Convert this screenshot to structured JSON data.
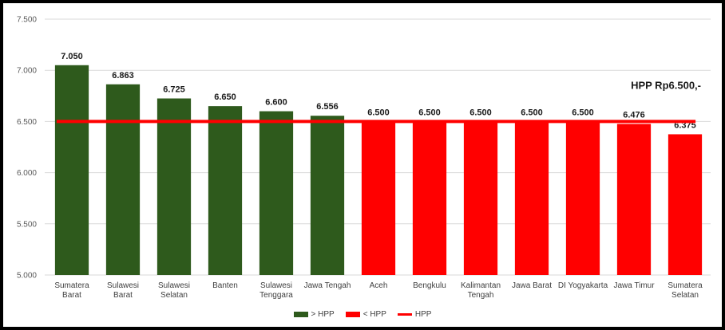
{
  "chart_data": {
    "type": "bar",
    "categories": [
      [
        "Sumatera",
        "Barat"
      ],
      [
        "Sulawesi",
        "Barat"
      ],
      [
        "Sulawesi",
        "Selatan"
      ],
      [
        "Banten"
      ],
      [
        "Sulawesi",
        "Tenggara"
      ],
      [
        "Jawa Tengah"
      ],
      [
        "Aceh"
      ],
      [
        "Bengkulu"
      ],
      [
        "Kalimantan",
        "Tengah"
      ],
      [
        "Jawa Barat"
      ],
      [
        "DI Yogyakarta"
      ],
      [
        "Jawa Timur"
      ],
      [
        "Sumatera",
        "Selatan"
      ]
    ],
    "values": [
      7050,
      6863,
      6725,
      6650,
      6600,
      6556,
      6500,
      6500,
      6500,
      6500,
      6500,
      6476,
      6375
    ],
    "value_labels": [
      "7.050",
      "6.863",
      "6.725",
      "6.650",
      "6.600",
      "6.556",
      "6.500",
      "6.500",
      "6.500",
      "6.500",
      "6.500",
      "6.476",
      "6.375"
    ],
    "bar_series": [
      0,
      0,
      0,
      0,
      0,
      0,
      1,
      1,
      1,
      1,
      1,
      1,
      1
    ],
    "series": [
      {
        "name": "> HPP",
        "color": "#2e5a1c"
      },
      {
        "name": "< HPP",
        "color": "#ff0000"
      }
    ],
    "reference_line": {
      "name": "HPP",
      "value": 6500,
      "color": "#ff0000"
    },
    "annotation": "HPP Rp6.500,-",
    "y_ticks": [
      5000,
      5500,
      6000,
      6500,
      7000,
      7500
    ],
    "y_tick_labels": [
      "5.000",
      "5.500",
      "6.000",
      "6.500",
      "7.000",
      "7.500"
    ],
    "ylim": [
      5000,
      7500
    ],
    "grid": true,
    "legend_position": "bottom",
    "title": "",
    "xlabel": "",
    "ylabel": ""
  }
}
